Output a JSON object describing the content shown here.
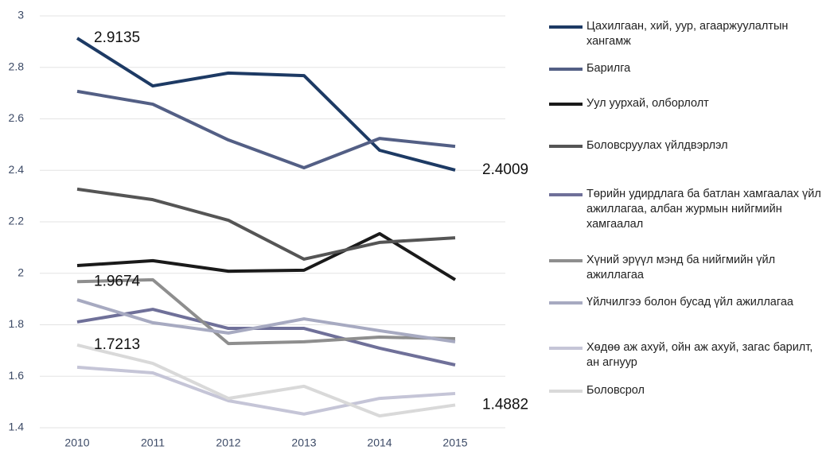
{
  "chart_data": {
    "type": "line",
    "categories": [
      "2010",
      "2011",
      "2012",
      "2013",
      "2014",
      "2015"
    ],
    "ylim": [
      1.4,
      3.0
    ],
    "yticks": [
      1.4,
      1.6,
      1.8,
      2.0,
      2.2,
      2.4,
      2.6,
      2.8,
      3.0
    ],
    "grid": true,
    "series": [
      {
        "name": "Цахилгаан, хий, уур, агааржуулалтын хангамж",
        "color": "#1d3a64",
        "values": [
          2.9135,
          2.728,
          2.778,
          2.768,
          2.478,
          2.4009
        ],
        "value_labels": [
          "2.9135",
          null,
          null,
          null,
          null,
          "2.4009"
        ]
      },
      {
        "name": "Барилга",
        "color": "#535f85",
        "values": [
          2.707,
          2.657,
          2.518,
          2.41,
          2.524,
          2.493
        ]
      },
      {
        "name": "Уул уурхай, олборлолт",
        "color": "#1a1a1a",
        "values": [
          2.03,
          2.049,
          2.008,
          2.012,
          2.154,
          1.975
        ]
      },
      {
        "name": "Боловсруулах үйлдвэрлэл",
        "color": "#555555",
        "values": [
          2.327,
          2.286,
          2.206,
          2.055,
          2.12,
          2.138
        ]
      },
      {
        "name": "Төрийн удирдлага ба батлан хамгаалах үйл ажиллагаа, албан журмын нийгмийн хамгаалал",
        "color": "#6f7099",
        "values": [
          1.811,
          1.86,
          1.786,
          1.786,
          1.709,
          1.644
        ]
      },
      {
        "name": "Хүний эрүүл мэнд ба нийгмийн үйл ажиллагаа",
        "color": "#8e8e8e",
        "values": [
          1.9674,
          1.975,
          1.727,
          1.734,
          1.752,
          1.746
        ],
        "value_labels": [
          "1.9674",
          null,
          null,
          null,
          null,
          null
        ]
      },
      {
        "name": "Үйлчилгээ болон бусад үйл ажиллагаа",
        "color": "#a7aac1",
        "values": [
          1.897,
          1.808,
          1.768,
          1.823,
          1.777,
          1.734
        ]
      },
      {
        "name": "Хөдөө аж ахуй, ойн аж ахуй, загас барилт, ан агнуур",
        "color": "#c5c5d7",
        "values": [
          1.635,
          1.613,
          1.505,
          1.453,
          1.514,
          1.533
        ]
      },
      {
        "name": "Боловсрол",
        "color": "#d9d9d9",
        "values": [
          1.7213,
          1.65,
          1.514,
          1.561,
          1.446,
          1.4882
        ],
        "value_labels": [
          "1.7213",
          null,
          null,
          null,
          null,
          "1.4882"
        ]
      }
    ]
  }
}
